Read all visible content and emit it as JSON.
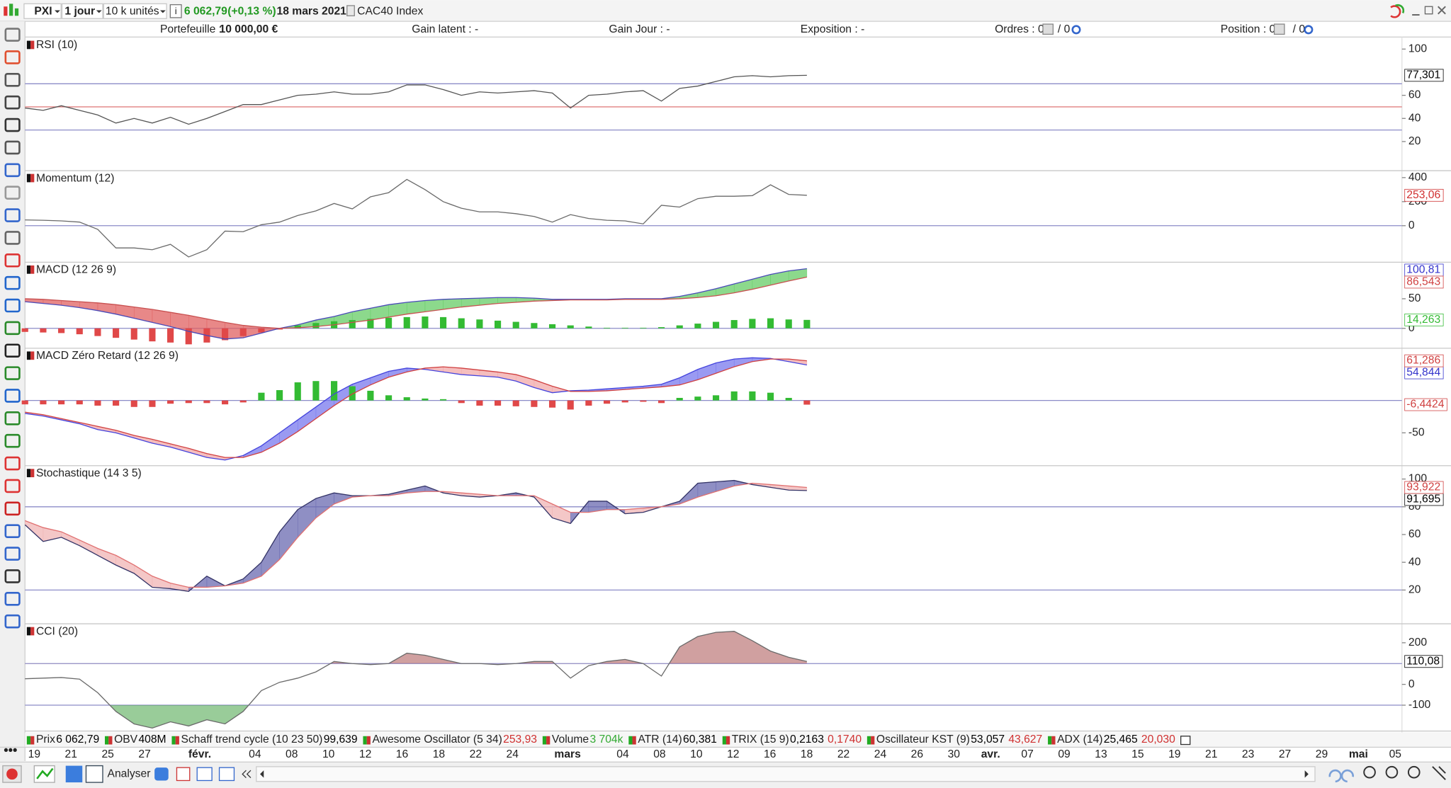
{
  "toolbar": {
    "symbol": "PXI",
    "period": "1 jour",
    "units": "10 k unités",
    "price": "6 062,79",
    "change": "(+0,13 %)",
    "date": "18 mars 2021",
    "name": "CAC40 Index"
  },
  "info_bar": {
    "portfolio_label": "Portefeuille :",
    "portfolio_value": "10 000,00 €",
    "gain_latent": "Gain latent : -",
    "gain_jour": "Gain Jour : -",
    "exposition": "Exposition : -",
    "ordres": "Ordres : 0",
    "ordres_sep": "/ 0",
    "position": "Position : 0",
    "position_sep": "/ 0"
  },
  "chart_data": [
    {
      "type": "line",
      "title": "RSI (10)",
      "ylim": [
        -4.8,
        109.6
      ],
      "yticks": [
        20,
        40,
        60,
        100
      ],
      "levels": [
        {
          "value": 30,
          "color": "#8c8cc8"
        },
        {
          "value": 50,
          "color": "#e08080"
        },
        {
          "value": 70,
          "color": "#8c8cc8"
        }
      ],
      "series": [
        {
          "type": "line",
          "color": "#555555",
          "label_color": "#000000",
          "last_label": "77,301",
          "values": [
            49,
            47,
            51,
            47,
            43,
            36,
            40,
            36,
            41,
            35,
            40,
            46,
            52,
            52,
            56,
            60,
            61,
            63,
            61,
            61,
            63,
            69,
            69,
            65,
            60,
            63,
            62,
            63,
            64,
            62,
            49,
            60,
            61,
            63,
            64,
            55,
            66,
            68,
            72,
            76,
            77,
            76,
            77,
            77.301
          ]
        }
      ]
    },
    {
      "type": "line",
      "title": "Momentum (12)",
      "ylim": [
        -300,
        453.8
      ],
      "yticks": [
        0,
        200,
        400
      ],
      "levels": [
        {
          "value": 0,
          "color": "#8c8cc8"
        }
      ],
      "series": [
        {
          "type": "line",
          "color": "#6a6a6a",
          "label_color": "#d03030",
          "last_label": "253,06",
          "values": [
            48,
            45,
            40,
            30,
            -30,
            -185,
            -185,
            -200,
            -155,
            -260,
            -200,
            -45,
            -50,
            8,
            30,
            85,
            123,
            185,
            140,
            240,
            275,
            385,
            300,
            200,
            145,
            115,
            115,
            100,
            77,
            30,
            92,
            60,
            45,
            40,
            15,
            170,
            155,
            225,
            245,
            245,
            250,
            340,
            260,
            253.06
          ]
        }
      ]
    },
    {
      "type": "band",
      "title": "MACD (12 26 9)",
      "ylim": [
        -32.8,
        110.9
      ],
      "yticks": [
        0,
        50
      ],
      "levels": [
        {
          "value": 0,
          "color": "#8c8cc8"
        }
      ],
      "fill_colors": {
        "above": "#66cc66",
        "below": "#e06060"
      },
      "series": [
        {
          "type": "line",
          "color": "#4a4ab8",
          "label_color": "#3333cc",
          "last_label": "100,81",
          "values": [
            45,
            42,
            39,
            35,
            30,
            24,
            17,
            10,
            3,
            -5,
            -12,
            -18,
            -16,
            -8,
            0,
            6,
            14,
            20,
            28,
            34,
            40,
            44,
            47,
            49,
            50,
            51,
            52,
            52,
            51,
            49,
            49,
            49,
            49,
            50,
            50,
            50,
            54,
            60,
            67,
            75,
            83,
            91,
            97,
            100.81
          ]
        },
        {
          "type": "line",
          "color": "#c85050",
          "label_color": "#d04040",
          "last_label": "86,543",
          "values": [
            50,
            49,
            47,
            45,
            43,
            40,
            36,
            32,
            27,
            22,
            16,
            10,
            5,
            2,
            0,
            1,
            3,
            6,
            10,
            14,
            19,
            24,
            28,
            32,
            36,
            39,
            42,
            44,
            46,
            47,
            48,
            48,
            48,
            49,
            49,
            49,
            50,
            52,
            55,
            60,
            66,
            73,
            80,
            86.543
          ]
        },
        {
          "type": "bar",
          "color": "#33bb33",
          "neg_color": "#e04848",
          "label_color": "#33bb33",
          "last_label": "14,263",
          "values": [
            -6,
            -7,
            -8,
            -10,
            -13,
            -16,
            -19,
            -22,
            -24,
            -27,
            -24,
            -20,
            -13,
            -7,
            -2,
            5,
            9,
            12,
            14,
            16,
            18,
            19,
            20,
            19,
            17,
            15,
            13,
            11,
            9,
            7,
            5,
            3,
            1,
            1,
            1,
            2,
            5,
            8,
            11,
            14,
            16,
            17,
            15,
            14.263
          ]
        }
      ]
    },
    {
      "type": "band",
      "title": "MACD Zéro Retard (12 26 9)",
      "ylim": [
        -100,
        80
      ],
      "yticks": [
        -50
      ],
      "levels": [
        {
          "value": 0,
          "color": "#8c8cc8"
        }
      ],
      "fill_colors": {
        "above": "#7878ee",
        "below": "#f2a8a8"
      },
      "series": [
        {
          "type": "line",
          "color": "#4444dd",
          "label_color": "#3333cc",
          "last_label": "54,844",
          "values": [
            -20,
            -24,
            -30,
            -36,
            -45,
            -50,
            -58,
            -66,
            -72,
            -80,
            -88,
            -92,
            -85,
            -70,
            -50,
            -30,
            -10,
            10,
            25,
            35,
            45,
            50,
            48,
            44,
            40,
            38,
            36,
            30,
            20,
            12,
            15,
            16,
            18,
            20,
            22,
            25,
            35,
            48,
            58,
            64,
            66,
            65,
            60,
            54.844
          ]
        },
        {
          "type": "line",
          "color": "#d04040",
          "label_color": "#d04040",
          "last_label": "61,286",
          "values": [
            -18,
            -22,
            -28,
            -34,
            -40,
            -46,
            -54,
            -60,
            -67,
            -74,
            -82,
            -88,
            -88,
            -80,
            -66,
            -48,
            -28,
            -8,
            10,
            24,
            36,
            44,
            50,
            52,
            50,
            47,
            44,
            40,
            32,
            22,
            14,
            14,
            15,
            17,
            19,
            21,
            24,
            32,
            42,
            52,
            60,
            64,
            64,
            61.286
          ]
        },
        {
          "type": "bar",
          "color": "#33bb33",
          "neg_color": "#e04848",
          "label_color": "#d04040",
          "last_label": "-6,4424",
          "values": [
            -6,
            -6,
            -6,
            -6,
            -8,
            -8,
            -10,
            -10,
            -5,
            -4,
            -4,
            -6,
            -3,
            12,
            16,
            28,
            30,
            30,
            22,
            15,
            8,
            5,
            3,
            2,
            -4,
            -8,
            -8,
            -9,
            -10,
            -11,
            -14,
            -8,
            -5,
            -3,
            -2,
            -4,
            4,
            6,
            8,
            14,
            14,
            12,
            4,
            -6.4424
          ]
        }
      ]
    },
    {
      "type": "band",
      "title": "Stochastique (14 3 5)",
      "ylim": [
        -4,
        109.3
      ],
      "yticks": [
        20,
        40,
        60,
        80,
        100
      ],
      "levels": [
        {
          "value": 20,
          "color": "#8c8cc8"
        },
        {
          "value": 80,
          "color": "#8c8cc8"
        }
      ],
      "fill_colors": {
        "above": "#6a6ab0",
        "below": "#f0b4b4"
      },
      "series": [
        {
          "type": "line",
          "color": "#333366",
          "label_color": "#000000",
          "last_label": "91,695",
          "values": [
            67,
            55,
            58,
            52,
            45,
            38,
            32,
            22,
            21,
            19,
            30,
            23,
            28,
            40,
            62,
            78,
            86,
            90,
            88,
            88,
            89,
            92,
            95,
            90,
            88,
            87,
            88,
            90,
            87,
            72,
            68,
            84,
            84,
            75,
            76,
            80,
            84,
            97,
            98,
            99,
            96,
            94,
            92,
            91.695
          ]
        },
        {
          "type": "line",
          "color": "#e07070",
          "label_color": "#d04040",
          "last_label": "93,922",
          "values": [
            70,
            65,
            62,
            56,
            50,
            45,
            38,
            30,
            25,
            22,
            22,
            23,
            25,
            30,
            42,
            58,
            72,
            82,
            87,
            88,
            88,
            90,
            91,
            91,
            90,
            89,
            88,
            88,
            88,
            82,
            76,
            76,
            78,
            78,
            79,
            80,
            82,
            87,
            91,
            95,
            97,
            96,
            95,
            93.922
          ]
        }
      ]
    },
    {
      "type": "line",
      "title": "CCI (20)",
      "ylim": [
        -222.2,
        288.9
      ],
      "yticks": [
        -100,
        0,
        200
      ],
      "levels": [
        {
          "value": -100,
          "color": "#8c8cc8"
        },
        {
          "value": 100,
          "color": "#8c8cc8"
        }
      ],
      "fill_beyond": {
        "upper": "#b06060",
        "lower": "#55aa55"
      },
      "series": [
        {
          "type": "line",
          "color": "#6a6a6a",
          "label_color": "#000000",
          "last_label": "110,08",
          "values": [
            27,
            30,
            33,
            25,
            -40,
            -130,
            -190,
            -210,
            -180,
            -200,
            -170,
            -190,
            -130,
            -30,
            10,
            30,
            60,
            110,
            100,
            95,
            100,
            150,
            140,
            120,
            100,
            100,
            95,
            100,
            110,
            110,
            30,
            90,
            110,
            120,
            100,
            40,
            180,
            230,
            250,
            255,
            210,
            160,
            130,
            110.08
          ]
        }
      ]
    }
  ],
  "x_axis_labels": [
    "19",
    "21",
    "25",
    "27",
    "févr.",
    "04",
    "08",
    "10",
    "12",
    "16",
    "18",
    "22",
    "24",
    "mars",
    "04",
    "08",
    "10",
    "12",
    "16",
    "18",
    "22",
    "24",
    "26",
    "30",
    "avr.",
    "07",
    "09",
    "13",
    "15",
    "19",
    "21",
    "23",
    "27",
    "29",
    "mai",
    "05"
  ],
  "legend_bar": [
    {
      "name": "Prix",
      "values": [
        "6 062,79"
      ],
      "colors": [
        "#000000"
      ]
    },
    {
      "name": "OBV",
      "values": [
        "408M"
      ],
      "colors": [
        "#000000"
      ]
    },
    {
      "name": "Schaff trend cycle (10 23 50)",
      "values": [
        "99,639"
      ],
      "colors": [
        "#000000"
      ]
    },
    {
      "name": "Awesome Oscillator (5 34)",
      "values": [
        "253,93"
      ],
      "colors": [
        "#d03030"
      ]
    },
    {
      "name": "Volume",
      "values": [
        "3 704k"
      ],
      "colors": [
        "#33aa33"
      ]
    },
    {
      "name": "ATR (14)",
      "values": [
        "60,381"
      ],
      "colors": [
        "#000000"
      ]
    },
    {
      "name": "TRIX (15 9)",
      "values": [
        "0,2163",
        "0,1740"
      ],
      "colors": [
        "#000000",
        "#d03030"
      ]
    },
    {
      "name": "Oscillateur KST (9)",
      "values": [
        "53,057",
        "43,627"
      ],
      "colors": [
        "#000000",
        "#d03030"
      ]
    },
    {
      "name": "ADX (14)",
      "values": [
        "25,465",
        "20,030"
      ],
      "colors": [
        "#000000",
        "#d03030"
      ]
    }
  ],
  "bottom_toolbar": {
    "analyse": "Analyser"
  }
}
